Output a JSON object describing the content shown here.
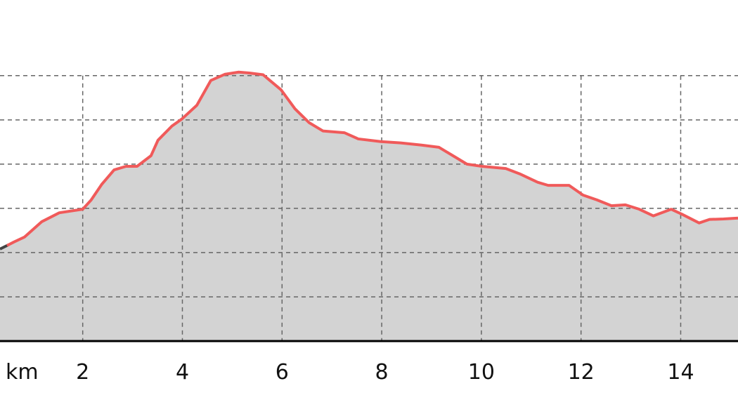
{
  "chart_data": {
    "type": "area",
    "title": "",
    "xlabel": "km",
    "ylabel": "",
    "x_ticks": [
      2,
      4,
      6,
      8,
      10,
      12,
      14
    ],
    "xlim": [
      0.34,
      15.15
    ],
    "ylim": [
      0,
      7.71
    ],
    "y_gridlines": [
      1,
      2,
      3,
      4,
      5,
      6
    ],
    "grid": true,
    "legend": "none",
    "colors": {
      "line": "#f05a5a",
      "line_start": "#444444",
      "fill": "#d3d3d3",
      "grid": "#666666",
      "axis": "#000000"
    },
    "series": [
      {
        "x": [
          0.34,
          0.62,
          0.83,
          1.18,
          1.53,
          2.0,
          2.17,
          2.38,
          2.63,
          2.87,
          3.09,
          3.37,
          3.51,
          3.79,
          3.99,
          4.29,
          4.57,
          4.85,
          5.13,
          5.34,
          5.62,
          5.98,
          6.26,
          6.54,
          6.82,
          7.25,
          7.53,
          7.98,
          8.38,
          8.8,
          9.15,
          9.43,
          9.71,
          10.01,
          10.49,
          10.77,
          11.13,
          11.34,
          11.76,
          12.04,
          12.32,
          12.61,
          12.89,
          13.17,
          13.45,
          13.81,
          14.02,
          14.37,
          14.58,
          14.86,
          15.15
        ],
        "y": [
          2.08,
          2.24,
          2.35,
          2.7,
          2.9,
          2.98,
          3.19,
          3.54,
          3.87,
          3.95,
          3.95,
          4.19,
          4.54,
          4.86,
          5.02,
          5.33,
          5.89,
          6.03,
          6.08,
          6.06,
          6.02,
          5.68,
          5.25,
          4.94,
          4.75,
          4.71,
          4.57,
          4.51,
          4.48,
          4.43,
          4.38,
          4.19,
          4.0,
          3.95,
          3.9,
          3.78,
          3.59,
          3.52,
          3.52,
          3.3,
          3.19,
          3.06,
          3.08,
          2.98,
          2.83,
          2.98,
          2.87,
          2.67,
          2.75,
          2.76,
          2.78
        ]
      }
    ]
  }
}
